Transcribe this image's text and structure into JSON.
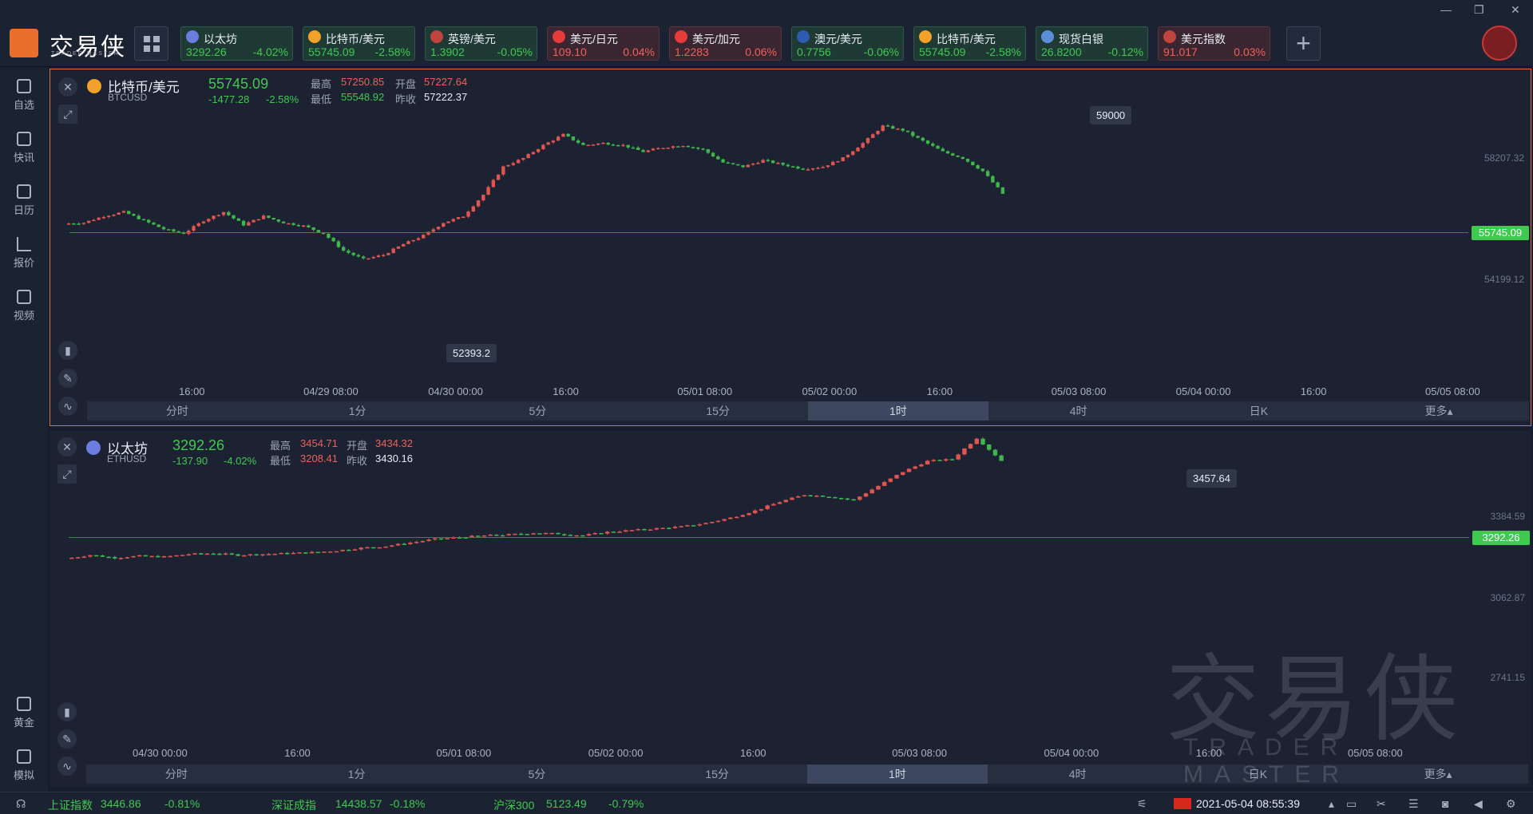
{
  "app": {
    "logo_text": "交易侠",
    "logo_sub": "TRADER MASTER"
  },
  "window_controls": {
    "minimize": "—",
    "restore": "❐",
    "close": "✕"
  },
  "tickers": [
    {
      "name": "以太坊",
      "price": "3292.26",
      "change": "-4.02%",
      "dir": "down",
      "icon_color": "#6b7de0"
    },
    {
      "name": "比特币/美元",
      "price": "55745.09",
      "change": "-2.58%",
      "dir": "down",
      "icon_color": "#f2a12a"
    },
    {
      "name": "英镑/美元",
      "price": "1.3902",
      "change": "-0.05%",
      "dir": "down",
      "icon_color": "#c0453f"
    },
    {
      "name": "美元/日元",
      "price": "109.10",
      "change": "0.04%",
      "dir": "up",
      "icon_color": "#e43b3b"
    },
    {
      "name": "美元/加元",
      "price": "1.2283",
      "change": "0.06%",
      "dir": "up",
      "icon_color": "#e43b3b"
    },
    {
      "name": "澳元/美元",
      "price": "0.7756",
      "change": "-0.06%",
      "dir": "down",
      "icon_color": "#2f5bb0"
    },
    {
      "name": "比特币/美元",
      "price": "55745.09",
      "change": "-2.58%",
      "dir": "down",
      "icon_color": "#f2a12a"
    },
    {
      "name": "现货白银",
      "price": "26.8200",
      "change": "-0.12%",
      "dir": "down",
      "icon_color": "#5a8fd8"
    },
    {
      "name": "美元指数",
      "price": "91.017",
      "change": "0.03%",
      "dir": "up",
      "icon_color": "#c0453f"
    }
  ],
  "add_button": "+",
  "sidebar": [
    {
      "label": "自选",
      "icon": "bookmark-icon"
    },
    {
      "label": "快讯",
      "icon": "news-icon"
    },
    {
      "label": "日历",
      "icon": "calendar-icon"
    },
    {
      "label": "报价",
      "icon": "quote-chart-icon"
    },
    {
      "label": "视频",
      "icon": "video-icon"
    },
    {
      "label": "黄金",
      "icon": "gold-icon"
    },
    {
      "label": "模拟",
      "icon": "simulate-icon"
    }
  ],
  "panels": [
    {
      "name": "比特币/美元",
      "code": "BTCUSD",
      "price": "55745.09",
      "change": "-1477.28",
      "change_pct": "-2.58%",
      "labels": {
        "high": "最高",
        "open": "开盘",
        "low": "最低",
        "prev": "昨收"
      },
      "high": "57250.85",
      "open": "57227.64",
      "low": "55548.92",
      "prev_close": "57222.37",
      "x_ticks": [
        "16:00",
        "04/29 08:00",
        "04/30 00:00",
        "16:00",
        "05/01 08:00",
        "05/02 00:00",
        "16:00",
        "05/03 08:00",
        "05/04 00:00",
        "16:00",
        "05/05 08:00"
      ],
      "y_ticks": [
        "58207.32",
        "54199.12"
      ],
      "price_tag": "55745.09",
      "max_label": "59000",
      "min_label": "52393.2"
    },
    {
      "name": "以太坊",
      "code": "ETHUSD",
      "price": "3292.26",
      "change": "-137.90",
      "change_pct": "-4.02%",
      "labels": {
        "high": "最高",
        "open": "开盘",
        "low": "最低",
        "prev": "昨收"
      },
      "high": "3454.71",
      "open": "3434.32",
      "low": "3208.41",
      "prev_close": "3430.16",
      "x_ticks": [
        "04/30 00:00",
        "16:00",
        "05/01 08:00",
        "05/02 00:00",
        "16:00",
        "05/03 08:00",
        "05/04 00:00",
        "16:00",
        "05/05 08:00"
      ],
      "y_ticks": [
        "3384.59",
        "3062.87",
        "2741.15"
      ],
      "price_tag": "3292.26",
      "max_label": "3457.64"
    }
  ],
  "timeframes": [
    "分时",
    "1分",
    "5分",
    "15分",
    "1时",
    "4时",
    "日K",
    "更多▴"
  ],
  "active_timeframe": "1时",
  "watermark": {
    "main": "交易侠",
    "sub": "TRADER MASTER"
  },
  "statusbar": {
    "indices": [
      {
        "name": "上证指数",
        "value": "3446.86",
        "change": "-0.81%"
      },
      {
        "name": "深证成指",
        "value": "14438.57",
        "change": "-0.18%"
      },
      {
        "name": "沪深300",
        "value": "5123.49",
        "change": "-0.79%"
      }
    ],
    "datetime": "2021-05-04 08:55:39"
  },
  "chart_data": [
    {
      "type": "candlestick",
      "title": "比特币/美元 BTCUSD",
      "x_range": [
        "04/28 16:00",
        "05/04 08:00"
      ],
      "y_ticks": [
        58207.32,
        54199.12
      ],
      "last": 55745.09,
      "max": 59000,
      "min": 52393.2,
      "close_path": [
        54350,
        54400,
        54700,
        54900,
        54500,
        54100,
        53900,
        54500,
        54900,
        54300,
        54700,
        54400,
        54250,
        53900,
        53100,
        52700,
        52900,
        53400,
        53800,
        54400,
        54700,
        55700,
        57000,
        57400,
        58000,
        58500,
        58000,
        58100,
        58000,
        57700,
        57900,
        58000,
        57800,
        57200,
        57000,
        57300,
        57100,
        56900,
        57000,
        57400,
        58100,
        58900,
        58700,
        58200,
        57700,
        57400,
        56800,
        55745
      ]
    },
    {
      "type": "candlestick",
      "title": "以太坊 ETHUSD",
      "x_range": [
        "04/29 16:00",
        "05/04 08:00"
      ],
      "y_ticks": [
        3384.59,
        3062.87,
        2741.15
      ],
      "last": 3292.26,
      "max": 3457.64,
      "close_path": [
        2740,
        2760,
        2745,
        2755,
        2750,
        2765,
        2770,
        2760,
        2765,
        2770,
        2775,
        2785,
        2800,
        2810,
        2830,
        2850,
        2860,
        2870,
        2875,
        2885,
        2880,
        2870,
        2890,
        2900,
        2910,
        2920,
        2940,
        2970,
        3010,
        3060,
        3100,
        3090,
        3070,
        3150,
        3230,
        3290,
        3300,
        3420,
        3292
      ]
    }
  ]
}
